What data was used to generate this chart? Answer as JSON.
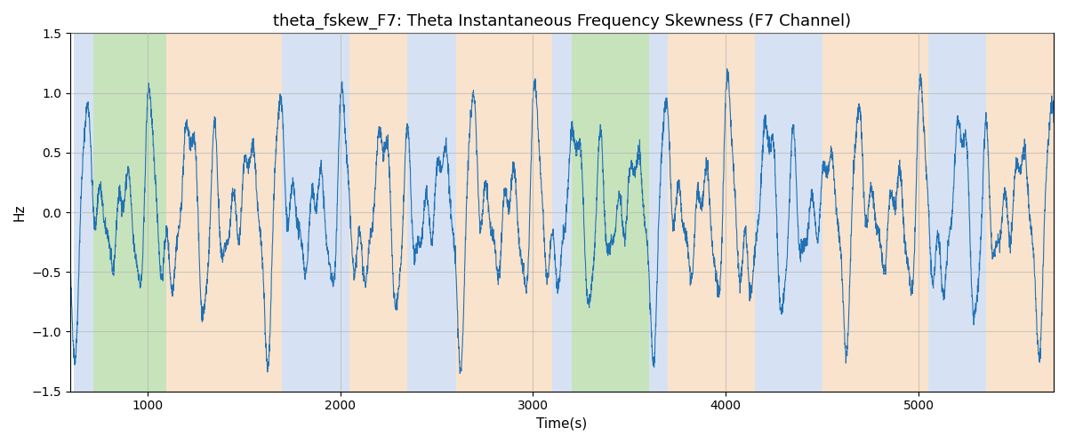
{
  "title": "theta_fskew_F7: Theta Instantaneous Frequency Skewness (F7 Channel)",
  "xlabel": "Time(s)",
  "ylabel": "Hz",
  "xlim": [
    600,
    5700
  ],
  "ylim": [
    -1.5,
    1.5
  ],
  "line_color": "#2171b5",
  "line_width": 0.8,
  "bg_bands": [
    {
      "xmin": 620,
      "xmax": 720,
      "color": "#aec6e8",
      "alpha": 0.5
    },
    {
      "xmin": 720,
      "xmax": 1100,
      "color": "#90c97a",
      "alpha": 0.5
    },
    {
      "xmin": 1100,
      "xmax": 1700,
      "color": "#f5c89a",
      "alpha": 0.5
    },
    {
      "xmin": 1700,
      "xmax": 2050,
      "color": "#aec6e8",
      "alpha": 0.5
    },
    {
      "xmin": 2050,
      "xmax": 2350,
      "color": "#f5c89a",
      "alpha": 0.5
    },
    {
      "xmin": 2350,
      "xmax": 2600,
      "color": "#aec6e8",
      "alpha": 0.5
    },
    {
      "xmin": 2600,
      "xmax": 3100,
      "color": "#f5c89a",
      "alpha": 0.5
    },
    {
      "xmin": 3100,
      "xmax": 3200,
      "color": "#aec6e8",
      "alpha": 0.5
    },
    {
      "xmin": 3200,
      "xmax": 3600,
      "color": "#90c97a",
      "alpha": 0.5
    },
    {
      "xmin": 3600,
      "xmax": 3700,
      "color": "#aec6e8",
      "alpha": 0.5
    },
    {
      "xmin": 3700,
      "xmax": 4150,
      "color": "#f5c89a",
      "alpha": 0.5
    },
    {
      "xmin": 4150,
      "xmax": 4500,
      "color": "#aec6e8",
      "alpha": 0.5
    },
    {
      "xmin": 4500,
      "xmax": 5050,
      "color": "#f5c89a",
      "alpha": 0.5
    },
    {
      "xmin": 5050,
      "xmax": 5350,
      "color": "#aec6e8",
      "alpha": 0.5
    },
    {
      "xmin": 5350,
      "xmax": 5700,
      "color": "#f5c89a",
      "alpha": 0.5
    }
  ],
  "grid_color": "#b0b0b0",
  "grid_alpha": 0.6,
  "grid_linewidth": 0.8,
  "title_fontsize": 13,
  "label_fontsize": 11,
  "tick_fontsize": 10,
  "xticks": [
    1000,
    2000,
    3000,
    4000,
    5000
  ],
  "yticks": [
    -1.5,
    -1.0,
    -0.5,
    0.0,
    0.5,
    1.0,
    1.5
  ],
  "seed": 42,
  "n_points": 5000
}
